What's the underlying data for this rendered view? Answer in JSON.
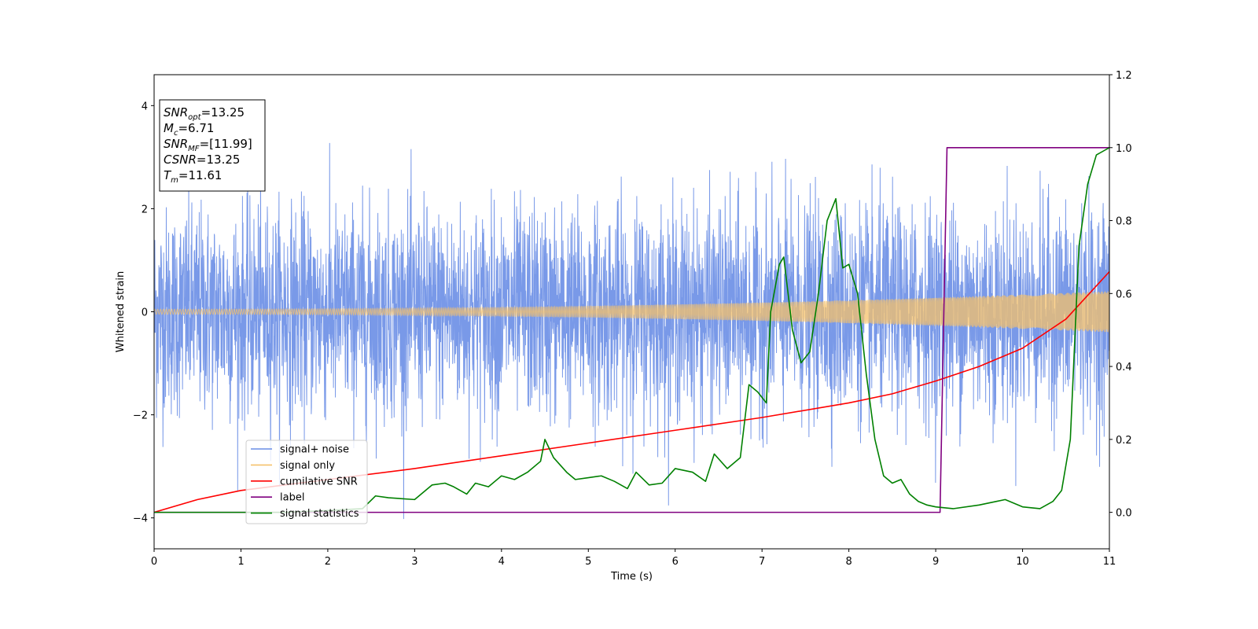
{
  "chart_data": {
    "type": "line",
    "xlabel": "Time (s)",
    "ylabel": "Whitened strain",
    "xlim": [
      0,
      11
    ],
    "ylim_left": [
      -4.6,
      4.6
    ],
    "ylim_right": [
      -0.1,
      1.2
    ],
    "x_ticks": [
      "0",
      "1",
      "2",
      "3",
      "4",
      "5",
      "6",
      "7",
      "8",
      "9",
      "10",
      "11"
    ],
    "y_left_ticks": [
      "−4",
      "−2",
      "0",
      "2",
      "4"
    ],
    "y_right_ticks": [
      "0.0",
      "0.2",
      "0.4",
      "0.6",
      "0.8",
      "1.0",
      "1.2"
    ],
    "legend_position": "lower-left",
    "grid": false,
    "info_box": {
      "lines": [
        {
          "base": "SNR",
          "sub": "opt",
          "value": "=13.25"
        },
        {
          "base": "M",
          "sub": "c",
          "value": "=6.71"
        },
        {
          "base": "SNR",
          "sub": "MF",
          "value": "=[11.99]"
        },
        {
          "base": "CSNR",
          "sub": "",
          "value": "=13.25"
        },
        {
          "base": "T",
          "sub": "m",
          "value": "=11.61"
        }
      ]
    },
    "series": [
      {
        "name": "signal+ noise",
        "axis": "left",
        "color": "#6a8ee6",
        "style": "noise",
        "noise_std": 1.0,
        "approx_range": [
          -4.1,
          4.2
        ]
      },
      {
        "name": "signal only",
        "axis": "left",
        "color": "#f5c26b",
        "style": "chirp",
        "amplitude_start": 0.05,
        "amplitude_end": 0.4
      },
      {
        "name": "cumilative SNR",
        "axis": "right",
        "color": "#ff0000",
        "x": [
          0,
          0.5,
          1,
          2,
          3,
          4,
          5,
          6,
          7,
          8,
          8.5,
          9,
          9.5,
          10,
          10.5,
          11
        ],
        "y": [
          0.0,
          0.035,
          0.06,
          0.09,
          0.12,
          0.155,
          0.19,
          0.225,
          0.26,
          0.3,
          0.325,
          0.36,
          0.4,
          0.45,
          0.53,
          0.66
        ]
      },
      {
        "name": "label",
        "axis": "right",
        "color": "#800080",
        "x": [
          0,
          9.05,
          9.13,
          11
        ],
        "y": [
          0.0,
          0.0,
          1.0,
          1.0
        ]
      },
      {
        "name": "signal statistics",
        "axis": "right",
        "color": "#008000",
        "x": [
          0,
          1.0,
          1.5,
          2.0,
          2.4,
          2.55,
          2.7,
          3.0,
          3.2,
          3.35,
          3.45,
          3.6,
          3.7,
          3.85,
          4.0,
          4.15,
          4.3,
          4.45,
          4.5,
          4.6,
          4.75,
          4.85,
          5.0,
          5.15,
          5.3,
          5.45,
          5.55,
          5.7,
          5.85,
          6.0,
          6.2,
          6.35,
          6.45,
          6.6,
          6.75,
          6.85,
          6.95,
          7.05,
          7.1,
          7.2,
          7.25,
          7.35,
          7.45,
          7.55,
          7.65,
          7.75,
          7.85,
          7.93,
          8.0,
          8.1,
          8.2,
          8.3,
          8.4,
          8.5,
          8.6,
          8.7,
          8.8,
          8.9,
          9.0,
          9.2,
          9.5,
          9.7,
          9.8,
          10.0,
          10.2,
          10.35,
          10.45,
          10.55,
          10.65,
          10.75,
          10.85,
          11.0
        ],
        "y": [
          0.0,
          0.0,
          0.0,
          0.005,
          0.01,
          0.045,
          0.04,
          0.035,
          0.075,
          0.08,
          0.07,
          0.05,
          0.08,
          0.07,
          0.1,
          0.09,
          0.11,
          0.14,
          0.2,
          0.15,
          0.11,
          0.09,
          0.095,
          0.1,
          0.085,
          0.065,
          0.11,
          0.075,
          0.08,
          0.12,
          0.11,
          0.085,
          0.16,
          0.12,
          0.15,
          0.35,
          0.33,
          0.3,
          0.55,
          0.68,
          0.7,
          0.5,
          0.41,
          0.44,
          0.6,
          0.8,
          0.86,
          0.67,
          0.68,
          0.6,
          0.38,
          0.2,
          0.1,
          0.08,
          0.09,
          0.05,
          0.03,
          0.02,
          0.015,
          0.01,
          0.02,
          0.03,
          0.035,
          0.015,
          0.01,
          0.03,
          0.06,
          0.2,
          0.73,
          0.9,
          0.98,
          1.0
        ]
      }
    ]
  }
}
